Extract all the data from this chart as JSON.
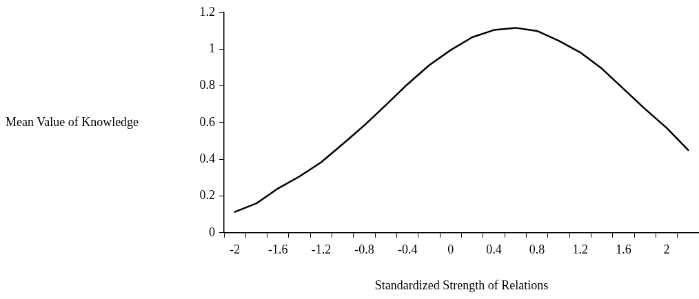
{
  "chart_data": {
    "type": "line",
    "xlabel": "Standardized Strength of Relations",
    "ylabel": "Mean Value of Knowledge",
    "categories": [
      "-2",
      null,
      "-1.6",
      null,
      "-1.2",
      null,
      "-0.8",
      null,
      "-0.4",
      null,
      "0",
      null,
      "0.4",
      null,
      "0.8",
      null,
      "1.2",
      null,
      "1.6",
      null,
      "2",
      null
    ],
    "series": [
      {
        "color": "#000000",
        "values": [
          0.113,
          0.16,
          0.241,
          0.307,
          0.384,
          0.483,
          0.585,
          0.696,
          0.809,
          0.912,
          0.995,
          1.065,
          1.104,
          1.116,
          1.099,
          1.046,
          0.982,
          0.894,
          0.784,
          0.674,
          0.571,
          0.45
        ]
      }
    ],
    "ylim": [
      0,
      1.2
    ],
    "yticks": [
      0,
      0.2,
      0.4,
      0.6,
      0.8,
      1,
      1.2
    ],
    "grid": false,
    "legend": false,
    "marker": "none",
    "line_style": "solid"
  }
}
